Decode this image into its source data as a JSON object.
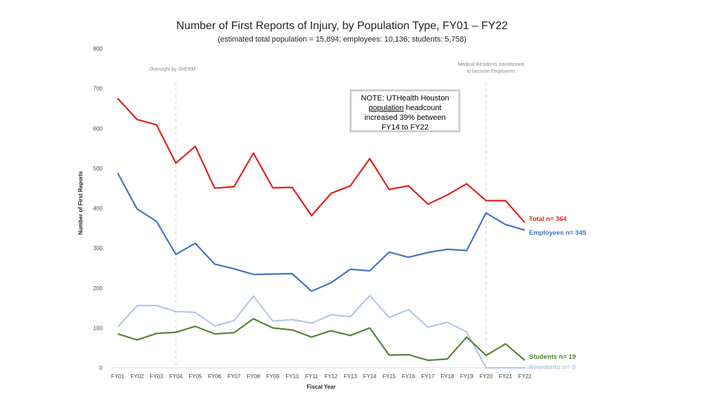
{
  "chart_data": {
    "type": "line",
    "title": "Number of First Reports of Injury, by Population Type, FY01 – FY22",
    "subtitle": "(estimated total population = 15,894; employees: 10,136; students: 5,758)",
    "xlabel": "Fiscal Year",
    "ylabel": "Number of First Reports",
    "ylim": [
      0,
      800
    ],
    "yticks": [
      "0",
      "100",
      "200",
      "300",
      "400",
      "500",
      "600",
      "700",
      "800"
    ],
    "categories": [
      "FY01",
      "FY02",
      "FY03",
      "FY04",
      "FY05",
      "FY06",
      "FY07",
      "FY08",
      "FY09",
      "FY10",
      "FY11",
      "FY12",
      "FY13",
      "FY14",
      "FY15",
      "FY16",
      "FY17",
      "FY18",
      "FY19",
      "FY20",
      "FY21",
      "FY22"
    ],
    "series": [
      {
        "name": "Total",
        "color": "#e0201b",
        "label": "Total n= 364",
        "values": [
          675,
          622,
          609,
          513,
          555,
          450,
          454,
          538,
          451,
          452,
          381,
          437,
          456,
          524,
          447,
          456,
          410,
          433,
          461,
          419,
          419,
          364
        ]
      },
      {
        "name": "Employees",
        "color": "#4472c4",
        "label": "Employees n= 345",
        "values": [
          488,
          398,
          367,
          284,
          312,
          260,
          248,
          234,
          235,
          236,
          192,
          213,
          247,
          243,
          290,
          277,
          289,
          297,
          294,
          388,
          359,
          345
        ]
      },
      {
        "name": "Residents",
        "color": "#b4c7e7",
        "label": "Residents n= 0",
        "values": [
          102,
          156,
          156,
          141,
          139,
          105,
          118,
          180,
          117,
          121,
          112,
          133,
          128,
          181,
          126,
          146,
          102,
          114,
          90,
          0,
          0,
          0
        ]
      },
      {
        "name": "Students",
        "color": "#548235",
        "label": "Students n= 19",
        "values": [
          85,
          70,
          86,
          89,
          104,
          85,
          88,
          123,
          100,
          95,
          77,
          93,
          81,
          100,
          32,
          33,
          19,
          22,
          77,
          31,
          60,
          19
        ]
      }
    ],
    "vlines": [
      {
        "at": "FY04",
        "label": "Oversight by SHERM"
      },
      {
        "at": "FY20",
        "label_line1": "Medical Residents transitioned",
        "label_line2": "to become Employees"
      }
    ],
    "note": {
      "line1": "NOTE: UTHealth Houston",
      "word_underlined": "population",
      "line2_rest": " headcount",
      "line3": "increased 39% between",
      "line4": "FY14 to FY22"
    }
  }
}
